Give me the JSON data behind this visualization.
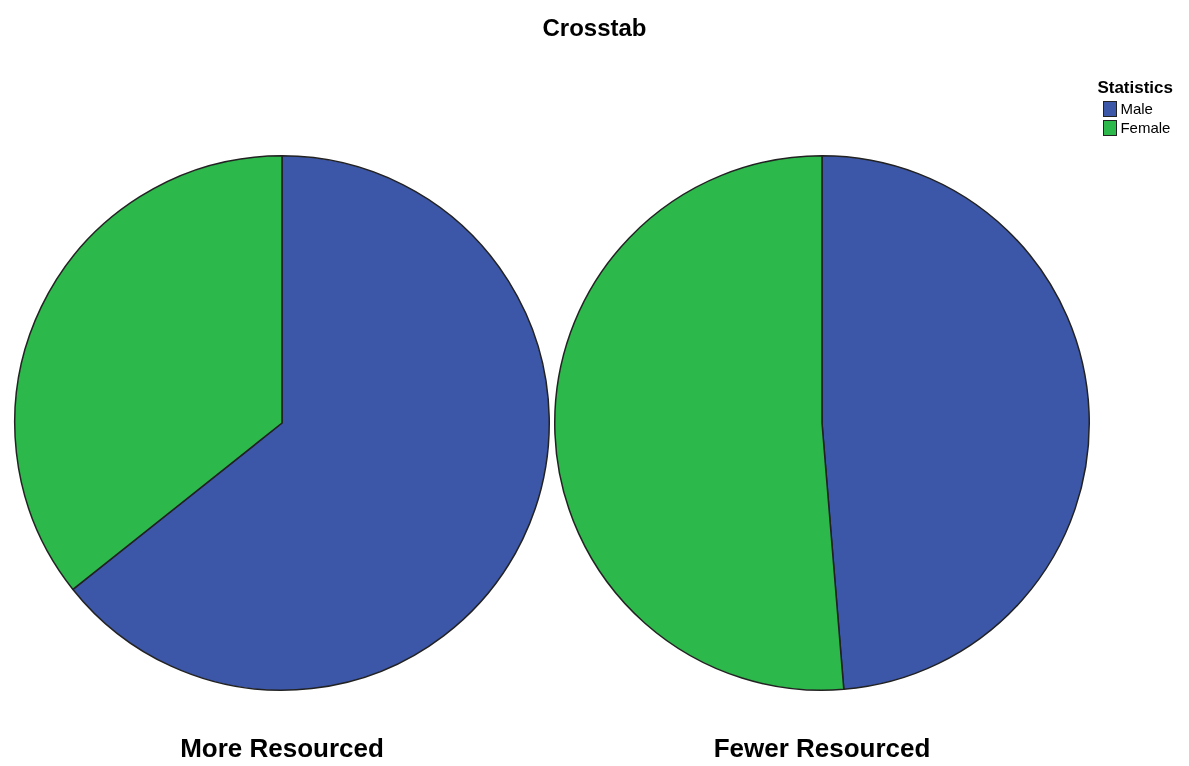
{
  "chart_data": {
    "type": "pie",
    "title": "Crosstab",
    "legend_title": "Statistics",
    "legend": "top right",
    "categories": [
      "Male",
      "Female"
    ],
    "colors": [
      "#3c56a8",
      "#2db84b"
    ],
    "series": [
      {
        "name": "More Resourced",
        "values": [
          64.3,
          35.7
        ]
      },
      {
        "name": "Fewer Resourced",
        "values": [
          48.7,
          51.3
        ]
      }
    ]
  }
}
